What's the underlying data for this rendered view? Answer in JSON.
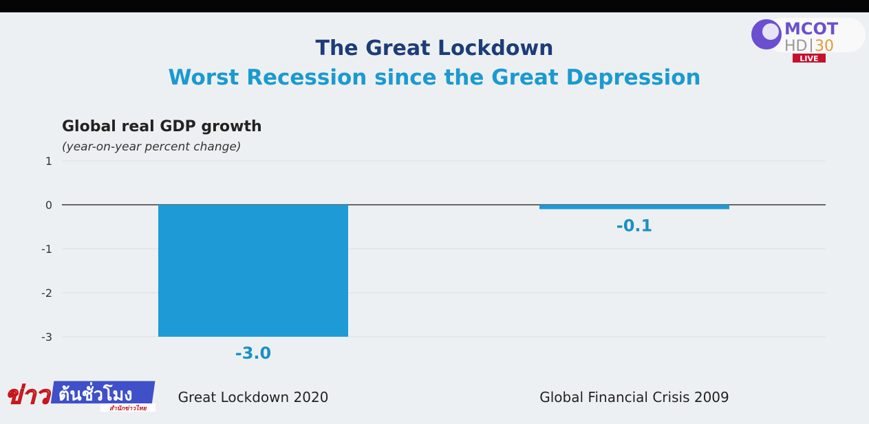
{
  "chart_data": {
    "type": "bar",
    "title": "The Great Lockdown",
    "subtitle": "Worst Recession since the Great Depression",
    "ylabel": "Global real GDP growth",
    "ylabel_note": "(year-on-year percent change)",
    "categories": [
      "Great Lockdown 2020",
      "Global Financial Crisis 2009"
    ],
    "values": [
      -3.0,
      -0.1
    ],
    "data_labels": [
      "-3.0",
      "-0.1"
    ],
    "ylim": [
      -3,
      1
    ],
    "yticks": [
      "1",
      "0",
      "-1",
      "-2",
      "-3"
    ],
    "grid": true,
    "color": "#1e9ad6"
  },
  "overlay": {
    "channel_logo": "MCOT HD 30",
    "live_badge": "LIVE",
    "program_logo": "ข่าวต้นชั่วโมง สำนักข่าวไทย"
  }
}
